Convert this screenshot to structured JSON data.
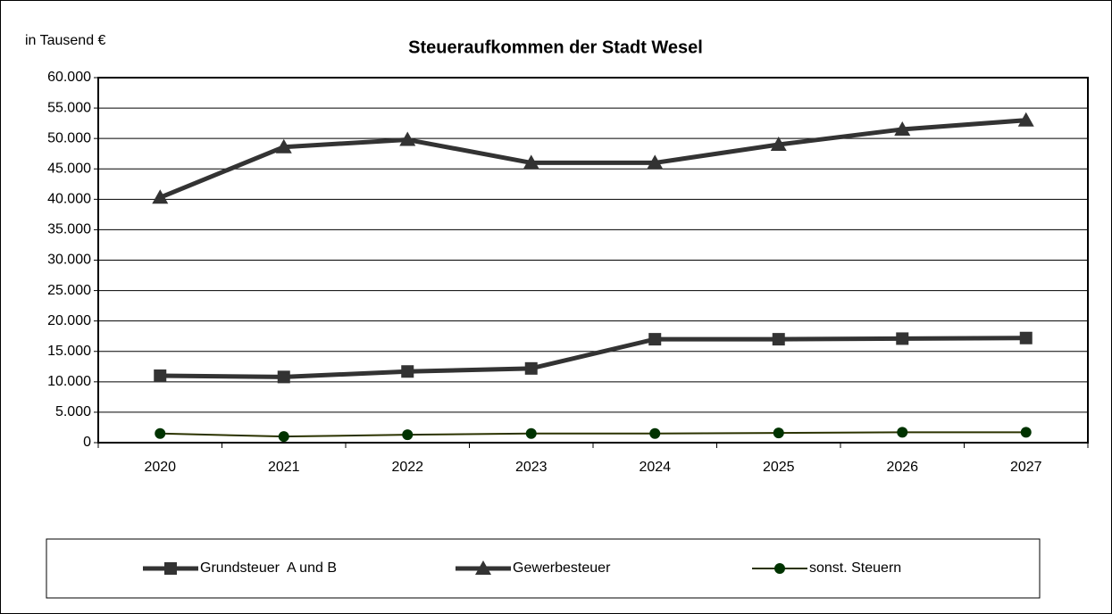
{
  "chart_data": {
    "type": "line",
    "title": "Steueraufkommen der Stadt Wesel",
    "ylabel": "in Tausend €",
    "categories": [
      "2020",
      "2021",
      "2022",
      "2023",
      "2024",
      "2025",
      "2026",
      "2027"
    ],
    "series": [
      {
        "name": "Grundsteuer  A und B",
        "color": "#333333",
        "marker": "square",
        "values": [
          11000,
          10800,
          11700,
          12200,
          17000,
          17000,
          17100,
          17200
        ]
      },
      {
        "name": "Gewerbesteuer",
        "color": "#333333",
        "marker": "triangle",
        "values": [
          40300,
          48600,
          49800,
          46000,
          46000,
          49000,
          51500,
          53000
        ]
      },
      {
        "name": "sonst. Steuern",
        "color": "#2b3300",
        "marker": "circle",
        "values": [
          1500,
          1000,
          1300,
          1500,
          1500,
          1600,
          1700,
          1700
        ]
      }
    ],
    "ylim": [
      0,
      60000
    ],
    "yticks": [
      0,
      {
        "value": 5000,
        "label": "5.000"
      },
      {
        "value": 10000,
        "label": "10.000"
      },
      {
        "value": 15000,
        "label": "15.000"
      },
      {
        "value": 20000,
        "label": "20.000"
      },
      {
        "value": 25000,
        "label": "25.000"
      },
      {
        "value": 30000,
        "label": "30.000"
      },
      {
        "value": 35000,
        "label": "35.000"
      },
      {
        "value": 40000,
        "label": "40.000"
      },
      {
        "value": 45000,
        "label": "45.000"
      },
      {
        "value": 50000,
        "label": "50.000"
      },
      {
        "value": 55000,
        "label": "55.000"
      },
      {
        "value": 60000,
        "label": "60.000"
      }
    ],
    "grid": true,
    "legend": "bottom"
  }
}
